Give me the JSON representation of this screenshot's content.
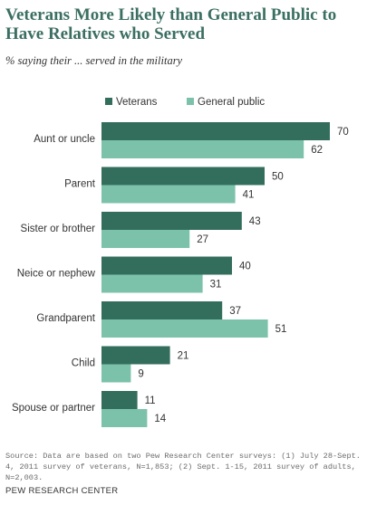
{
  "title": "Veterans More Likely than General Public to Have Relatives who Served",
  "subtitle": "% saying their ... served in the military",
  "source": "Source: Data are based on two Pew Research Center surveys: (1) July 28-Sept. 4, 2011 survey of veterans, N=1,853; (2) Sept. 1-15, 2011 survey of adults, N=2,003.",
  "brand": "PEW RESEARCH CENTER",
  "colors": {
    "veterans": "#336e5d",
    "general_public": "#7cc2ab"
  },
  "chart_data": {
    "type": "bar",
    "orientation": "horizontal",
    "categories": [
      "Aunt or uncle",
      "Parent",
      "Sister or brother",
      "Neice or nephew",
      "Grandparent",
      "Child",
      "Spouse or partner"
    ],
    "series": [
      {
        "name": "Veterans",
        "values": [
          70,
          50,
          43,
          40,
          37,
          21,
          11
        ]
      },
      {
        "name": "General public",
        "values": [
          62,
          41,
          27,
          31,
          51,
          9,
          14
        ]
      }
    ],
    "xlim": [
      0,
      70
    ],
    "grid": false,
    "legend_position": "top"
  }
}
